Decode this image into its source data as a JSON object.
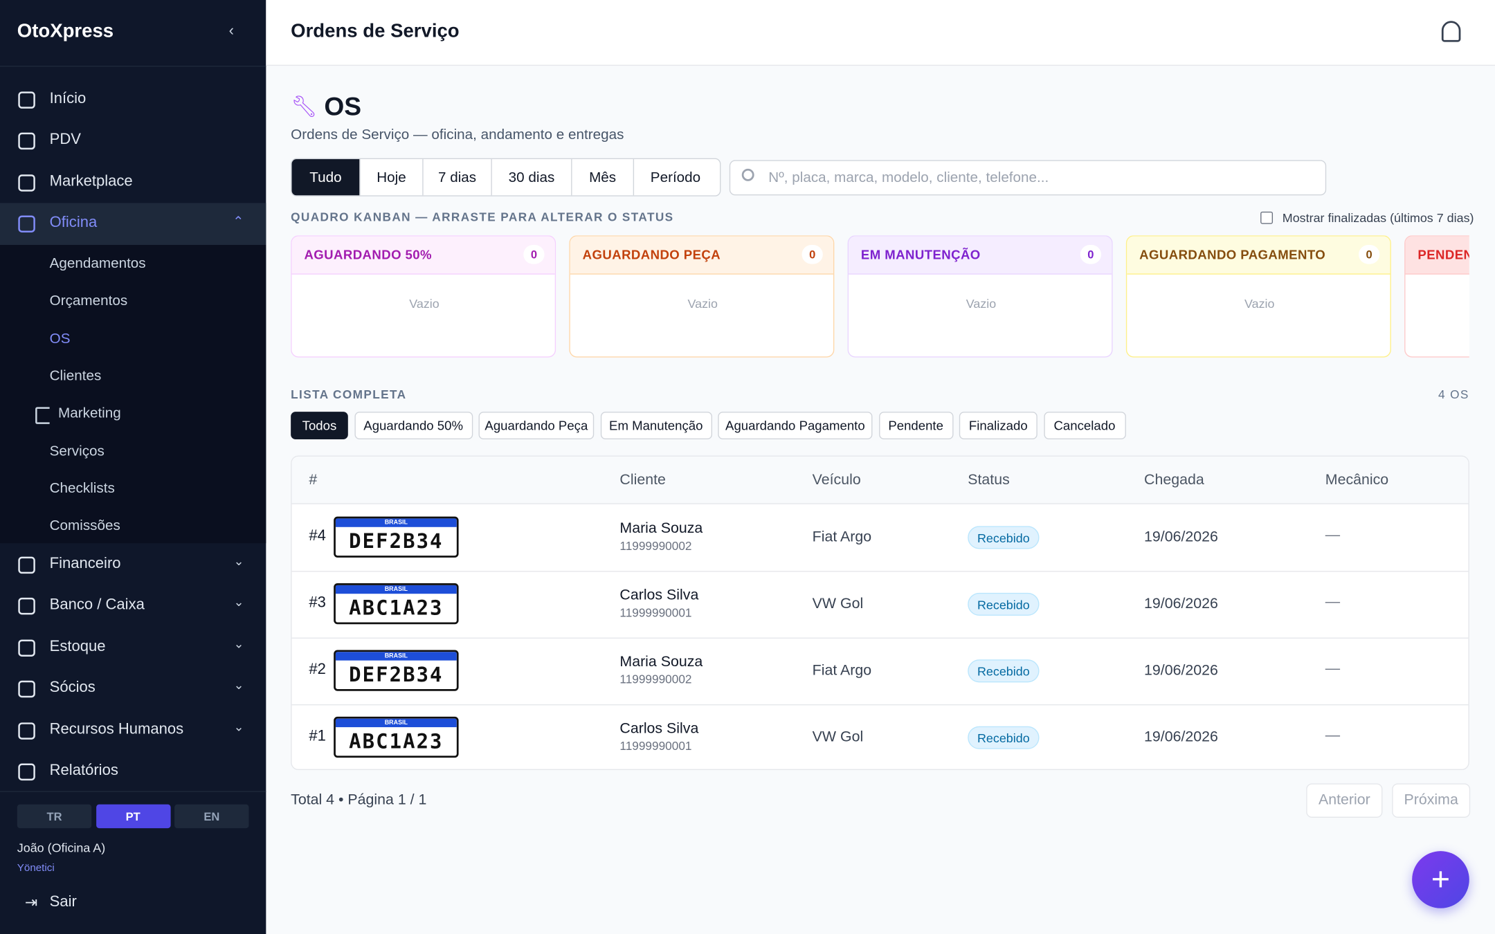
{
  "sidebar": {
    "brand": "OtoXpress",
    "nav": [
      "Início",
      "PDV",
      "Marketplace",
      "Oficina"
    ],
    "submenu": [
      "Agendamentos",
      "Orçamentos",
      "OS",
      "Clientes",
      "Marketing",
      "Serviços",
      "Checklists",
      "Comissões"
    ],
    "nav2": [
      "Financeiro",
      "Banco / Caixa",
      "Estoque",
      "Sócios",
      "Recursos Humanos",
      "Relatórios"
    ],
    "languages": [
      "TR",
      "PT",
      "EN"
    ],
    "user": "João (Oficina A)",
    "role": "Yönetici",
    "logout": "Sair"
  },
  "header": {
    "title": "Ordens de Serviço"
  },
  "page": {
    "title": "OS",
    "subtitle": "Ordens de Serviço — oficina, andamento e entregas",
    "periods": [
      "Tudo",
      "Hoje",
      "7 dias",
      "30 dias",
      "Mês",
      "Período"
    ],
    "search_placeholder": "Nº, placa, marca, modelo, cliente, telefone...",
    "kanban_label": "QUADRO KANBAN — ARRASTE PARA ALTERAR O STATUS",
    "show_finished": "Mostrar finalizadas (últimos 7 dias)",
    "kanban": [
      {
        "name": "AGUARDANDO 50%",
        "count": 0,
        "empty": "Vazio"
      },
      {
        "name": "AGUARDANDO PEÇA",
        "count": 0,
        "empty": "Vazio"
      },
      {
        "name": "EM MANUTENÇÃO",
        "count": 0,
        "empty": "Vazio"
      },
      {
        "name": "AGUARDANDO PAGAMENTO",
        "count": 0,
        "empty": "Vazio"
      },
      {
        "name": "PENDENTE"
      }
    ],
    "list_label": "LISTA COMPLETA",
    "list_count": "4 OS",
    "status_filters": [
      "Todos",
      "Aguardando 50%",
      "Aguardando Peça",
      "Em Manutenção",
      "Aguardando Pagamento",
      "Pendente",
      "Finalizado",
      "Cancelado"
    ],
    "table": {
      "headers": [
        "#",
        "Cliente",
        "Veículo",
        "Status",
        "Chegada",
        "Mecânico"
      ],
      "rows": [
        {
          "id": "#4",
          "plate_country": "BRASIL",
          "plate": "DEF2B34",
          "client": "Maria Souza",
          "phone": "11999990002",
          "vehicle": "Fiat Argo",
          "status": "Recebido",
          "arrival": "19/06/2026",
          "mechanic": "—"
        },
        {
          "id": "#3",
          "plate_country": "BRASIL",
          "plate": "ABC1A23",
          "client": "Carlos Silva",
          "phone": "11999990001",
          "vehicle": "VW Gol",
          "status": "Recebido",
          "arrival": "19/06/2026",
          "mechanic": "—"
        },
        {
          "id": "#2",
          "plate_country": "BRASIL",
          "plate": "DEF2B34",
          "client": "Maria Souza",
          "phone": "11999990002",
          "vehicle": "Fiat Argo",
          "status": "Recebido",
          "arrival": "19/06/2026",
          "mechanic": "—"
        },
        {
          "id": "#1",
          "plate_country": "BRASIL",
          "plate": "ABC1A23",
          "client": "Carlos Silva",
          "phone": "11999990001",
          "vehicle": "VW Gol",
          "status": "Recebido",
          "arrival": "19/06/2026",
          "mechanic": "—"
        }
      ]
    },
    "footer": {
      "total": "Total 4 • Página 1 / 1",
      "prev": "Anterior",
      "next": "Próxima"
    }
  }
}
